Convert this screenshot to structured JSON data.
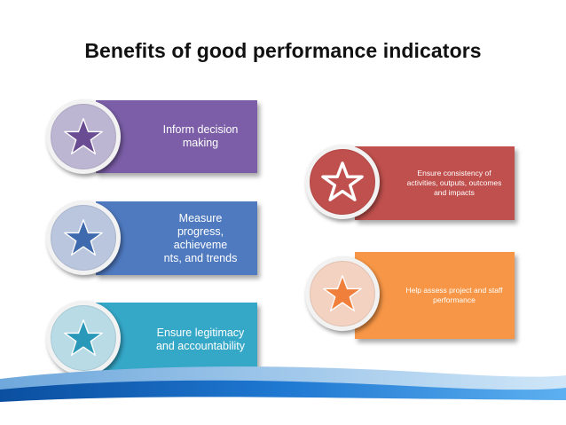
{
  "title": "Benefits of good performance indicators",
  "items": [
    {
      "label": "Inform decision\nmaking",
      "icon": "star-icon",
      "color": "#7b5ea7",
      "badge_color": "#bdb6d3",
      "star_color": "#6a4c93"
    },
    {
      "label": "Measure\nprogress, achieveme\nnts, and trends",
      "icon": "star-icon",
      "color": "#4f7ac0",
      "badge_color": "#b9c6de",
      "star_color": "#3f6aae"
    },
    {
      "label": "Ensure legitimacy\nand accountability",
      "icon": "star-icon",
      "color": "#35a8c8",
      "badge_color": "#b8dbe6",
      "star_color": "#2a98b8"
    },
    {
      "label": "Ensure consistency of\nactivities, outputs, outcomes\nand impacts",
      "icon": "star-icon",
      "color": "#c0504d",
      "badge_color": "#c0504d",
      "star_color": "#ffffff"
    },
    {
      "label": "Help assess project and staff\nperformance",
      "icon": "star-icon",
      "color": "#f79646",
      "badge_color": "#f3d2c1",
      "star_color": "#f07f3c"
    }
  ]
}
